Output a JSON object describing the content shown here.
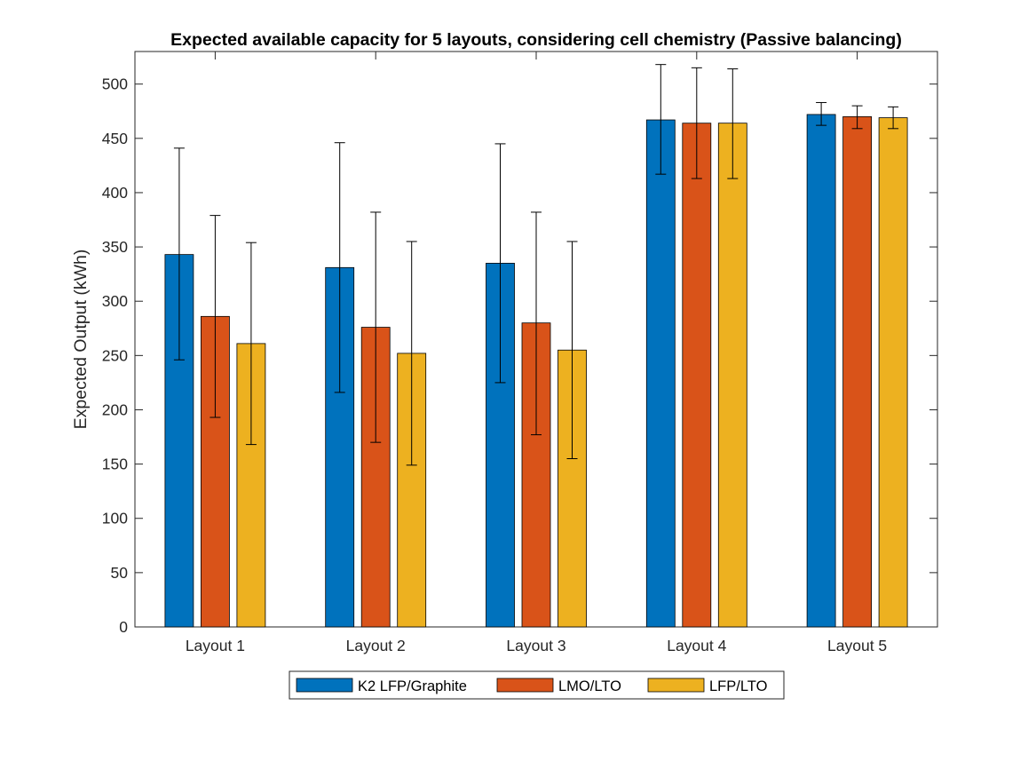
{
  "chart_data": {
    "type": "bar",
    "title": "Expected available capacity for 5 layouts, considering cell chemistry (Passive balancing)",
    "xlabel": "",
    "ylabel": "Expected Output (kWh)",
    "ylim": [
      0,
      530
    ],
    "yticks": [
      0,
      50,
      100,
      150,
      200,
      250,
      300,
      350,
      400,
      450,
      500
    ],
    "categories": [
      "Layout 1",
      "Layout 2",
      "Layout 3",
      "Layout 4",
      "Layout 5"
    ],
    "series": [
      {
        "name": "K2 LFP/Graphite",
        "color": "#0072BD",
        "values": [
          343,
          331,
          335,
          467,
          472
        ],
        "err_low": [
          246,
          216,
          225,
          417,
          462
        ],
        "err_high": [
          441,
          446,
          445,
          518,
          483
        ]
      },
      {
        "name": "LMO/LTO",
        "color": "#D95319",
        "values": [
          286,
          276,
          280,
          464,
          470
        ],
        "err_low": [
          193,
          170,
          177,
          413,
          459
        ],
        "err_high": [
          379,
          382,
          382,
          515,
          480
        ]
      },
      {
        "name": "LFP/LTO",
        "color": "#EDB120",
        "values": [
          261,
          252,
          255,
          464,
          469
        ],
        "err_low": [
          168,
          149,
          155,
          413,
          459
        ],
        "err_high": [
          354,
          355,
          355,
          514,
          479
        ]
      }
    ],
    "legend_position": "bottom",
    "grid": false
  }
}
